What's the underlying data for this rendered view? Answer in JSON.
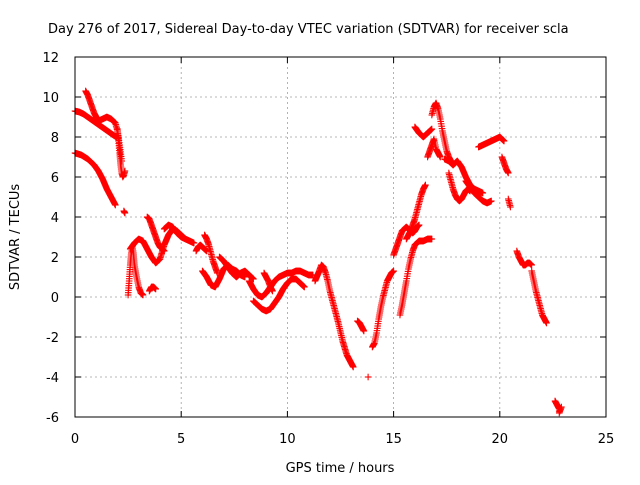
{
  "chart_data": {
    "type": "scatter",
    "title": "Day 276 of 2017, Sidereal Day-to-day VTEC variation (SDTVAR) for receiver scla",
    "xlabel": "GPS time / hours",
    "ylabel": "SDTVAR / TECUs",
    "xlim": [
      0,
      25
    ],
    "ylim": [
      -6,
      12
    ],
    "xticks": [
      "0",
      "5",
      "10",
      "15",
      "20",
      "25"
    ],
    "yticks": [
      "-6",
      "-4",
      "-2",
      "0",
      "2",
      "4",
      "6",
      "8",
      "10",
      "12"
    ],
    "grid": true,
    "marker": "+",
    "color": "#ff0000",
    "series": [
      {
        "x": [
          0.0,
          0.2,
          0.4,
          0.6,
          0.8,
          1.0,
          1.2,
          1.4,
          1.6,
          1.8,
          1.95
        ],
        "y": [
          9.3,
          9.25,
          9.15,
          9.0,
          8.85,
          8.7,
          8.55,
          8.4,
          8.25,
          8.1,
          8.0
        ]
      },
      {
        "x": [
          0.0,
          0.3,
          0.6,
          0.9,
          1.1,
          1.3,
          1.5,
          1.7,
          1.8,
          1.9
        ],
        "y": [
          7.2,
          7.1,
          6.9,
          6.6,
          6.3,
          5.9,
          5.4,
          5.0,
          4.8,
          4.6
        ]
      },
      {
        "x": [
          0.5,
          0.6,
          0.7,
          0.8,
          0.9,
          1.0,
          1.1,
          1.3,
          1.5,
          1.7,
          1.9,
          2.0,
          2.1,
          2.2
        ],
        "y": [
          10.3,
          10.1,
          9.8,
          9.5,
          9.2,
          9.0,
          8.8,
          8.9,
          9.0,
          8.9,
          8.7,
          8.3,
          7.6,
          6.8
        ]
      },
      {
        "x": [
          2.0,
          2.05,
          2.1,
          2.15,
          2.2,
          2.25,
          2.3,
          2.35
        ],
        "y": [
          8.4,
          7.8,
          7.2,
          6.6,
          6.2,
          6.0,
          6.1,
          6.3
        ]
      },
      {
        "x": [
          2.3,
          2.35
        ],
        "y": [
          4.3,
          4.2
        ]
      },
      {
        "x": [
          2.5,
          2.55,
          2.6,
          2.65,
          2.7,
          2.75,
          2.8,
          2.9,
          3.0,
          3.1,
          3.2
        ],
        "y": [
          0.1,
          0.8,
          1.6,
          2.2,
          2.5,
          2.2,
          1.6,
          1.0,
          0.5,
          0.2,
          0.1
        ]
      },
      {
        "x": [
          2.6,
          2.8,
          3.0,
          3.2,
          3.4,
          3.6,
          3.8,
          4.0,
          4.2,
          4.4,
          4.6,
          4.8,
          5.0,
          5.2
        ],
        "y": [
          2.4,
          2.7,
          2.9,
          2.8,
          2.4,
          2.0,
          1.7,
          1.9,
          2.6,
          3.1,
          3.4,
          3.3,
          3.1,
          2.9
        ]
      },
      {
        "x": [
          3.4,
          3.5,
          3.6,
          3.7,
          3.8,
          3.9,
          4.0,
          4.1,
          4.2
        ],
        "y": [
          4.0,
          3.9,
          3.6,
          3.3,
          3.0,
          2.7,
          2.5,
          2.4,
          2.3
        ]
      },
      {
        "x": [
          3.5,
          3.6,
          3.7,
          3.8
        ],
        "y": [
          0.3,
          0.5,
          0.5,
          0.4
        ]
      },
      {
        "x": [
          4.2,
          4.4,
          4.6,
          4.8,
          5.0,
          5.2,
          5.4,
          5.6
        ],
        "y": [
          3.4,
          3.6,
          3.5,
          3.2,
          3.0,
          2.9,
          2.8,
          2.7
        ]
      },
      {
        "x": [
          5.7,
          5.8,
          5.9,
          6.0,
          6.1,
          6.2
        ],
        "y": [
          2.3,
          2.5,
          2.6,
          2.5,
          2.4,
          2.3
        ]
      },
      {
        "x": [
          6.0,
          6.2,
          6.4,
          6.6,
          6.8,
          7.0,
          7.2,
          7.4,
          7.6,
          7.8,
          8.0
        ],
        "y": [
          1.3,
          1.0,
          0.6,
          0.5,
          0.9,
          1.4,
          1.6,
          1.4,
          1.3,
          1.1,
          1.0
        ]
      },
      {
        "x": [
          6.1,
          6.2,
          6.3,
          6.4,
          6.5,
          6.6,
          6.7
        ],
        "y": [
          3.1,
          2.9,
          2.6,
          2.2,
          1.8,
          1.5,
          1.2
        ]
      },
      {
        "x": [
          6.8,
          7.0,
          7.2,
          7.4,
          7.6,
          7.8,
          8.0,
          8.2,
          8.4
        ],
        "y": [
          2.0,
          1.8,
          1.5,
          1.2,
          1.0,
          1.2,
          1.3,
          1.1,
          0.9
        ]
      },
      {
        "x": [
          8.2,
          8.4,
          8.6,
          8.8,
          9.0,
          9.2,
          9.4,
          9.6,
          9.8,
          10.0,
          10.2,
          10.4,
          10.6,
          10.8,
          11.0,
          11.2
        ],
        "y": [
          0.8,
          0.4,
          0.1,
          0.0,
          0.2,
          0.5,
          0.8,
          1.0,
          1.1,
          1.2,
          1.2,
          1.3,
          1.3,
          1.2,
          1.1,
          1.1
        ]
      },
      {
        "x": [
          8.4,
          8.6,
          8.8,
          9.0,
          9.2,
          9.4,
          9.6,
          9.8,
          10.0,
          10.2,
          10.4,
          10.6,
          10.8
        ],
        "y": [
          -0.2,
          -0.4,
          -0.6,
          -0.7,
          -0.6,
          -0.3,
          0.0,
          0.4,
          0.7,
          0.9,
          0.9,
          0.7,
          0.5
        ]
      },
      {
        "x": [
          8.9,
          9.0,
          9.1,
          9.2,
          9.3
        ],
        "y": [
          1.2,
          1.0,
          0.8,
          0.5,
          0.3
        ]
      },
      {
        "x": [
          11.3,
          11.5,
          11.6,
          11.7,
          11.8,
          11.9,
          12.0,
          12.2,
          12.4,
          12.6,
          12.8,
          13.0,
          13.1
        ],
        "y": [
          0.8,
          1.3,
          1.6,
          1.5,
          1.2,
          0.8,
          0.3,
          -0.5,
          -1.3,
          -2.2,
          -2.9,
          -3.3,
          -3.5
        ]
      },
      {
        "x": [
          13.3,
          13.4,
          13.5,
          13.6
        ],
        "y": [
          -1.2,
          -1.3,
          -1.5,
          -1.7
        ]
      },
      {
        "x": [
          13.8
        ],
        "y": [
          -4.0
        ]
      },
      {
        "x": [
          14.0,
          14.1,
          14.2,
          14.3,
          14.4,
          14.5,
          14.6,
          14.7,
          14.8,
          14.9,
          15.0
        ],
        "y": [
          -2.5,
          -2.3,
          -1.8,
          -1.1,
          -0.5,
          0.0,
          0.4,
          0.8,
          1.0,
          1.2,
          1.3
        ]
      },
      {
        "x": [
          15.0,
          15.1,
          15.2,
          15.3,
          15.4,
          15.5,
          15.6,
          15.7,
          15.8,
          15.9,
          16.0,
          16.1,
          16.2
        ],
        "y": [
          2.1,
          2.4,
          2.7,
          3.0,
          3.3,
          3.4,
          3.5,
          3.4,
          3.3,
          3.2,
          3.3,
          3.5,
          3.6
        ]
      },
      {
        "x": [
          15.3,
          15.4,
          15.5,
          15.6,
          15.7,
          15.8,
          15.9,
          16.0,
          16.2,
          16.4,
          16.6,
          16.8
        ],
        "y": [
          -0.9,
          -0.4,
          0.2,
          0.8,
          1.4,
          1.9,
          2.3,
          2.6,
          2.8,
          2.8,
          2.9,
          2.9
        ]
      },
      {
        "x": [
          15.6,
          15.7,
          15.8,
          15.9,
          16.0,
          16.1,
          16.2,
          16.3,
          16.4,
          16.5
        ],
        "y": [
          2.9,
          3.1,
          3.3,
          3.6,
          3.9,
          4.3,
          4.7,
          5.1,
          5.4,
          5.6
        ]
      },
      {
        "x": [
          16.0,
          16.2,
          16.4,
          16.6,
          16.8
        ],
        "y": [
          8.5,
          8.2,
          8.0,
          8.2,
          8.4
        ]
      },
      {
        "x": [
          16.6,
          16.7,
          16.8,
          16.9,
          17.0,
          17.1,
          17.2
        ],
        "y": [
          7.0,
          7.3,
          7.6,
          7.9,
          7.4,
          7.2,
          7.0
        ]
      },
      {
        "x": [
          16.8,
          16.9,
          17.0,
          17.1,
          17.2,
          17.3,
          17.4,
          17.5,
          17.6,
          17.7,
          17.8
        ],
        "y": [
          9.1,
          9.5,
          9.7,
          9.4,
          8.9,
          8.3,
          7.8,
          7.3,
          7.0,
          6.8,
          6.6
        ]
      },
      {
        "x": [
          17.4,
          17.6,
          17.8,
          18.0,
          18.2,
          18.4,
          18.6,
          18.8,
          19.0,
          19.2
        ],
        "y": [
          6.9,
          6.8,
          6.6,
          6.8,
          6.5,
          6.0,
          5.6,
          5.4,
          5.3,
          5.2
        ]
      },
      {
        "x": [
          17.6,
          17.7,
          17.8,
          17.9,
          18.0,
          18.1,
          18.2,
          18.3,
          18.4,
          18.5,
          18.6
        ],
        "y": [
          6.2,
          5.8,
          5.4,
          5.1,
          4.9,
          4.8,
          4.9,
          5.1,
          5.3,
          5.4,
          5.3
        ]
      },
      {
        "x": [
          18.4,
          18.6,
          18.8,
          19.0,
          19.2,
          19.4,
          19.6
        ],
        "y": [
          5.8,
          5.5,
          5.2,
          5.0,
          4.8,
          4.7,
          4.8
        ]
      },
      {
        "x": [
          19.0,
          19.2,
          19.4,
          19.6,
          19.8,
          20.0,
          20.2
        ],
        "y": [
          7.5,
          7.6,
          7.7,
          7.8,
          7.9,
          8.0,
          7.8
        ]
      },
      {
        "x": [
          20.1,
          20.2,
          20.3,
          20.4
        ],
        "y": [
          7.0,
          6.7,
          6.4,
          6.2
        ]
      },
      {
        "x": [
          20.4,
          20.5
        ],
        "y": [
          4.9,
          4.5
        ]
      },
      {
        "x": [
          20.8,
          20.9,
          21.0,
          21.1,
          21.2,
          21.3,
          21.4,
          21.5
        ],
        "y": [
          2.3,
          2.0,
          1.8,
          1.6,
          1.6,
          1.7,
          1.7,
          1.6
        ]
      },
      {
        "x": [
          21.5,
          21.6,
          21.7,
          21.8,
          21.9,
          22.0,
          22.1,
          22.2
        ],
        "y": [
          1.3,
          0.8,
          0.3,
          -0.1,
          -0.5,
          -0.9,
          -1.1,
          -1.3
        ]
      },
      {
        "x": [
          22.6,
          22.7,
          22.8,
          22.8,
          22.9
        ],
        "y": [
          -5.2,
          -5.4,
          -5.6,
          -5.8,
          -5.5
        ]
      }
    ]
  }
}
